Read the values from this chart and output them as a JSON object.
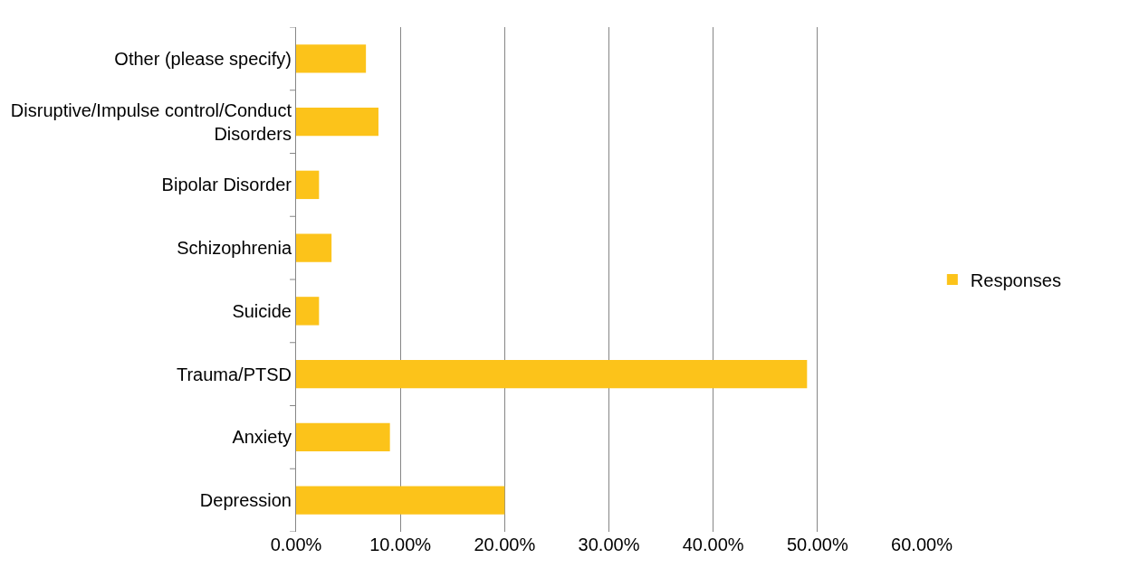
{
  "chart_data": {
    "type": "bar",
    "orientation": "horizontal",
    "categories": [
      "Other (please specify)",
      "Disruptive/Impulse control/Conduct Disorders",
      "Bipolar Disorder",
      "Schizophrenia",
      "Suicide",
      "Trauma/PTSD",
      "Anxiety",
      "Depression"
    ],
    "series": [
      {
        "name": "Responses",
        "color": "#fcc31a",
        "values": [
          6.7,
          7.9,
          2.2,
          3.4,
          2.2,
          49,
          9,
          20
        ]
      }
    ],
    "xlim": [
      0,
      60
    ],
    "xticks": [
      {
        "value": 0,
        "label": "0.00%"
      },
      {
        "value": 10,
        "label": "10.00%"
      },
      {
        "value": 20,
        "label": "20.00%"
      },
      {
        "value": 30,
        "label": "30.00%"
      },
      {
        "value": 40,
        "label": "40.00%"
      },
      {
        "value": 50,
        "label": "50.00%"
      },
      {
        "value": 60,
        "label": "60.00%"
      }
    ],
    "grid": "x",
    "legend": "right"
  }
}
